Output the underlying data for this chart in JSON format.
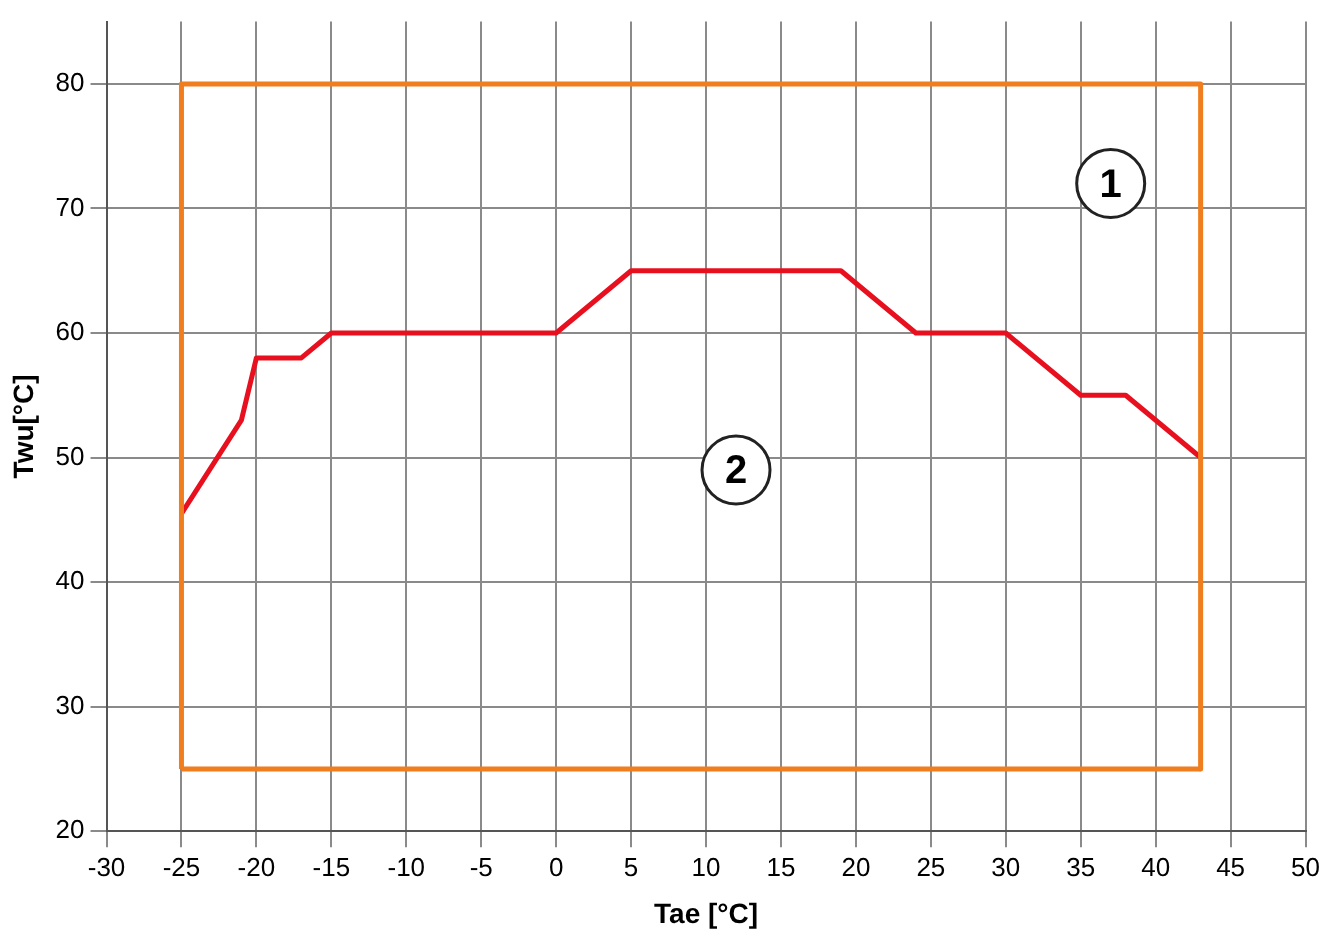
{
  "chart_data": {
    "type": "line",
    "xlabel": "Tae [°C]",
    "ylabel": "Twu[°C]",
    "xlim": [
      -30,
      50
    ],
    "xticks": [
      -30,
      -25,
      -20,
      -15,
      -10,
      -5,
      0,
      5,
      10,
      15,
      20,
      25,
      30,
      35,
      40,
      45,
      50
    ],
    "ylim": [
      20,
      85
    ],
    "yticks": [
      20,
      30,
      40,
      50,
      60,
      70,
      80
    ],
    "grid": true,
    "legend": false,
    "marker": "none",
    "line_style": "solid",
    "series": [
      {
        "color": "#f07d1e",
        "x": [
          -25,
          -25,
          43,
          43
        ],
        "values": [
          25,
          80,
          80,
          25
        ]
      },
      {
        "color": "#f07d1e",
        "x": [
          -25,
          43
        ],
        "values": [
          25,
          25
        ]
      },
      {
        "color": "#e8101e",
        "x": [
          -25,
          -21,
          -20,
          -17,
          -15,
          0,
          1,
          5,
          19,
          24,
          30,
          35,
          38,
          43
        ],
        "values": [
          45.5,
          53,
          58,
          58,
          60,
          60,
          61,
          65,
          65,
          60,
          60,
          55,
          55,
          50
        ]
      }
    ],
    "annotations": [
      {
        "text": "1",
        "x": 37,
        "y": 72
      },
      {
        "text": "2",
        "x": 12,
        "y": 49
      }
    ]
  }
}
